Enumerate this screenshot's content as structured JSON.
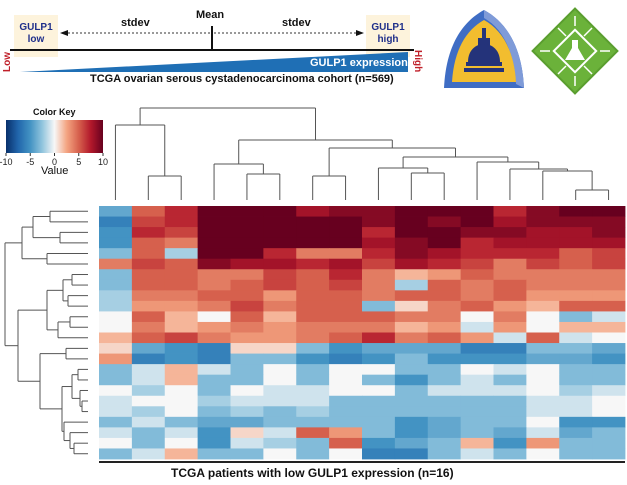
{
  "header": {
    "gulp_low": [
      "GULP1",
      "low"
    ],
    "gulp_high": [
      "GULP1",
      "high"
    ],
    "mean_label": "Mean",
    "stdev_left": "stdev",
    "stdev_right": "stdev",
    "low_label": "Low",
    "high_label": "High",
    "expression_label": "GULP1 expression",
    "cohort_label": "TCGA ovarian serous cystadenocarcinoma cohort (n=569)",
    "gradient_color": "#1f6fb5"
  },
  "logos": [
    {
      "name": "johns-hopkins-logo"
    },
    {
      "name": "chip-flask-logo"
    }
  ],
  "color_key": {
    "title": "Color Key",
    "axis_label": "Value",
    "ticks": [
      "-10",
      "-5",
      "0",
      "5",
      "10"
    ],
    "range": [
      -10,
      10
    ],
    "stops": [
      "#08306b",
      "#2166ac",
      "#4393c3",
      "#92c5de",
      "#f7f7f7",
      "#f4a582",
      "#d6604d",
      "#b2182b",
      "#67001f"
    ]
  },
  "footer": {
    "caption": "TCGA patients with low GULP1 expression (n=16)"
  },
  "chart_data": {
    "type": "heatmap",
    "title": "",
    "xlabel": "TCGA patients with low GULP1 expression (n=16)",
    "ylabel": "",
    "n_columns": 16,
    "n_rows": 24,
    "value_range": [
      -10,
      10
    ],
    "column_dendrogram": true,
    "row_dendrogram": true,
    "values": [
      [
        -4,
        5,
        7,
        10,
        10,
        10,
        8,
        9,
        9,
        10,
        10,
        10,
        7,
        9,
        10,
        10
      ],
      [
        -6,
        6,
        7,
        10,
        10,
        10,
        10,
        10,
        9,
        10,
        9,
        10,
        8,
        9,
        9,
        9
      ],
      [
        -5,
        7,
        6,
        10,
        10,
        10,
        10,
        10,
        7,
        10,
        10,
        9,
        9,
        8,
        8,
        9
      ],
      [
        -5,
        5,
        4,
        10,
        10,
        10,
        10,
        10,
        8,
        9,
        10,
        7,
        8,
        8,
        8,
        8
      ],
      [
        -3,
        5,
        -2,
        10,
        10,
        7,
        4,
        4,
        7,
        9,
        8,
        7,
        7,
        7,
        5,
        6
      ],
      [
        4,
        6,
        5,
        9,
        8,
        8,
        7,
        8,
        6,
        8,
        7,
        6,
        4,
        6,
        5,
        6
      ],
      [
        -3,
        5,
        5,
        4,
        4,
        6,
        5,
        7,
        4,
        2,
        3,
        5,
        4,
        4,
        4,
        4
      ],
      [
        -3,
        5,
        5,
        4,
        5,
        6,
        5,
        6,
        4,
        -2,
        5,
        4,
        5,
        4,
        4,
        4
      ],
      [
        -2,
        4,
        4,
        5,
        5,
        3,
        5,
        5,
        4,
        5,
        5,
        4,
        5,
        3,
        3,
        3
      ],
      [
        -2,
        3,
        3,
        4,
        6,
        4,
        5,
        5,
        -3,
        1,
        4,
        5,
        3,
        2,
        5,
        5
      ],
      [
        0,
        5,
        2,
        0,
        5,
        2,
        5,
        5,
        5,
        4,
        4,
        0,
        4,
        0,
        -3,
        -1
      ],
      [
        0,
        4,
        2,
        3,
        4,
        3,
        4,
        4,
        4,
        2,
        3,
        -1,
        3,
        0,
        2,
        2
      ],
      [
        2,
        5,
        6,
        4,
        3,
        3,
        4,
        5,
        7,
        4,
        5,
        3,
        -1,
        5,
        -1,
        0
      ],
      [
        1,
        -4,
        -5,
        -6,
        1,
        1,
        -3,
        -5,
        -4,
        -4,
        -4,
        -6,
        -6,
        -3,
        -3,
        -4
      ],
      [
        3,
        -6,
        -5,
        -6,
        -3,
        -3,
        -5,
        -6,
        -5,
        -3,
        -5,
        -5,
        -5,
        -4,
        -4,
        -5
      ],
      [
        -3,
        -1,
        2,
        -1,
        -3,
        0,
        -3,
        0,
        0,
        -3,
        -3,
        0,
        -1,
        0,
        -3,
        -3
      ],
      [
        -3,
        -1,
        2,
        -3,
        -3,
        0,
        -3,
        0,
        -3,
        -5,
        -3,
        -1,
        -3,
        0,
        -3,
        -3
      ],
      [
        0,
        -2,
        0,
        -3,
        0,
        -1,
        -1,
        0,
        0,
        -3,
        -1,
        -1,
        -1,
        0,
        -2,
        -1
      ],
      [
        -1,
        0,
        0,
        -2,
        -1,
        -1,
        -1,
        -3,
        -3,
        -3,
        -3,
        -3,
        -3,
        -1,
        -1,
        0
      ],
      [
        -1,
        -2,
        0,
        -3,
        -2,
        -3,
        -2,
        -3,
        -3,
        -3,
        -3,
        -3,
        -3,
        -1,
        -1,
        0
      ],
      [
        -3,
        -1,
        -3,
        -4,
        -4,
        -3,
        -3,
        -3,
        -3,
        -5,
        -4,
        -3,
        -3,
        0,
        -5,
        -5
      ],
      [
        -1,
        -3,
        -1,
        -5,
        1,
        -1,
        5,
        3,
        -3,
        -5,
        -4,
        -3,
        -4,
        -1,
        -4,
        -3
      ],
      [
        0,
        -3,
        0,
        -5,
        -1,
        -2,
        -3,
        5,
        -5,
        -4,
        -3,
        2,
        -5,
        3,
        -3,
        -3
      ],
      [
        -3,
        -1,
        2,
        -3,
        -3,
        0,
        -3,
        0,
        -6,
        -6,
        -3,
        -1,
        -3,
        0,
        -3,
        -3
      ]
    ]
  }
}
